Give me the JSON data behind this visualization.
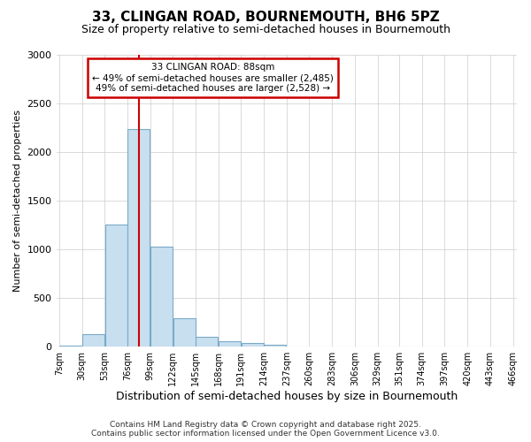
{
  "title1": "33, CLINGAN ROAD, BOURNEMOUTH, BH6 5PZ",
  "title2": "Size of property relative to semi-detached houses in Bournemouth",
  "xlabel": "Distribution of semi-detached houses by size in Bournemouth",
  "ylabel": "Number of semi-detached properties",
  "bar_color": "#c8dff0",
  "bar_edge_color": "#7aaac8",
  "vline_color": "#cc0000",
  "vline_x": 87.5,
  "annotation_title": "33 CLINGAN ROAD: 88sqm",
  "annotation_line1": "← 49% of semi-detached houses are smaller (2,485)",
  "annotation_line2": "49% of semi-detached houses are larger (2,528) →",
  "annotation_box_color": "#ffffff",
  "annotation_box_edge": "#cc0000",
  "footer1": "Contains HM Land Registry data © Crown copyright and database right 2025.",
  "footer2": "Contains public sector information licensed under the Open Government Licence v3.0.",
  "bins_left": [
    7,
    30,
    53,
    76,
    99,
    122,
    145,
    168,
    191,
    214,
    237,
    260,
    283,
    306,
    329,
    351,
    374,
    397,
    420,
    443
  ],
  "bin_width": 23,
  "values": [
    10,
    130,
    1250,
    2230,
    1030,
    290,
    100,
    55,
    40,
    20,
    0,
    0,
    0,
    0,
    0,
    0,
    0,
    0,
    0,
    0
  ],
  "ylim": [
    0,
    3000
  ],
  "xlim": [
    4,
    470
  ],
  "tick_labels": [
    "7sqm",
    "30sqm",
    "53sqm",
    "76sqm",
    "99sqm",
    "122sqm",
    "145sqm",
    "168sqm",
    "191sqm",
    "214sqm",
    "237sqm",
    "260sqm",
    "283sqm",
    "306sqm",
    "329sqm",
    "351sqm",
    "374sqm",
    "397sqm",
    "420sqm",
    "443sqm",
    "466sqm"
  ],
  "tick_positions": [
    7,
    30,
    53,
    76,
    99,
    122,
    145,
    168,
    191,
    214,
    237,
    260,
    283,
    306,
    329,
    351,
    374,
    397,
    420,
    443,
    466
  ],
  "bg_color": "#ffffff",
  "plot_bg_color": "#ffffff",
  "grid_color": "#cccccc"
}
